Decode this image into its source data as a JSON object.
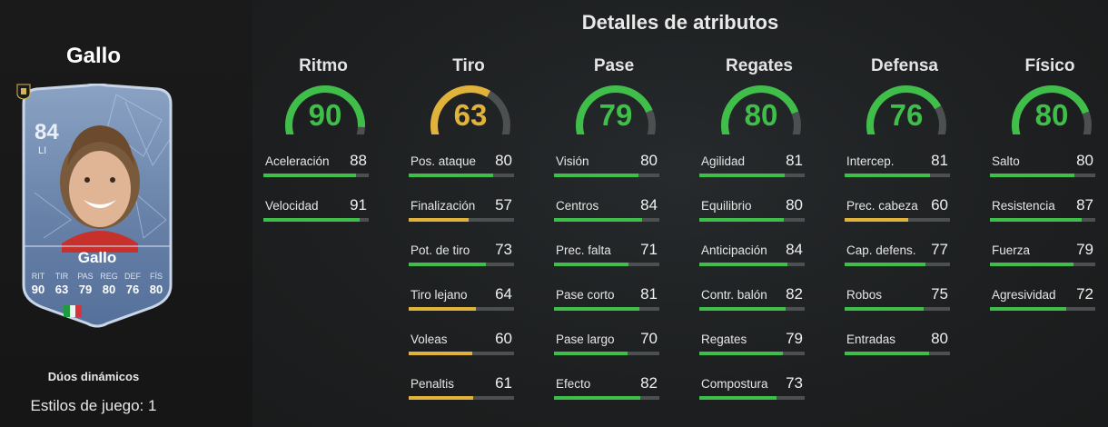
{
  "page": {
    "title": "Detalles de atributos"
  },
  "player": {
    "name": "Gallo",
    "rating": "84",
    "position": "LI",
    "card_name": "Gallo",
    "card_stats": [
      {
        "label": "RIT",
        "value": "90"
      },
      {
        "label": "TIR",
        "value": "63"
      },
      {
        "label": "PAS",
        "value": "79"
      },
      {
        "label": "REG",
        "value": "80"
      },
      {
        "label": "DEF",
        "value": "76"
      },
      {
        "label": "FÍS",
        "value": "80"
      }
    ],
    "subtitle": "Dúos dinámicos",
    "playstyles": "Estilos de juego: 1"
  },
  "colors": {
    "high": "#3fbf4a",
    "mid": "#e2b33a",
    "track": "#4d5050"
  },
  "categories": [
    {
      "label": "Ritmo",
      "value": "90",
      "attributes": [
        {
          "name": "Aceleración",
          "value": "88"
        },
        {
          "name": "Velocidad",
          "value": "91"
        }
      ]
    },
    {
      "label": "Tiro",
      "value": "63",
      "attributes": [
        {
          "name": "Pos. ataque",
          "value": "80"
        },
        {
          "name": "Finalización",
          "value": "57"
        },
        {
          "name": "Pot. de tiro",
          "value": "73"
        },
        {
          "name": "Tiro lejano",
          "value": "64"
        },
        {
          "name": "Voleas",
          "value": "60"
        },
        {
          "name": "Penaltis",
          "value": "61"
        }
      ]
    },
    {
      "label": "Pase",
      "value": "79",
      "attributes": [
        {
          "name": "Visión",
          "value": "80"
        },
        {
          "name": "Centros",
          "value": "84"
        },
        {
          "name": "Prec. falta",
          "value": "71"
        },
        {
          "name": "Pase corto",
          "value": "81"
        },
        {
          "name": "Pase largo",
          "value": "70"
        },
        {
          "name": "Efecto",
          "value": "82"
        }
      ]
    },
    {
      "label": "Regates",
      "value": "80",
      "attributes": [
        {
          "name": "Agilidad",
          "value": "81"
        },
        {
          "name": "Equilibrio",
          "value": "80"
        },
        {
          "name": "Anticipación",
          "value": "84"
        },
        {
          "name": "Contr. balón",
          "value": "82"
        },
        {
          "name": "Regates",
          "value": "79"
        },
        {
          "name": "Compostura",
          "value": "73"
        }
      ]
    },
    {
      "label": "Defensa",
      "value": "76",
      "attributes": [
        {
          "name": "Intercep.",
          "value": "81"
        },
        {
          "name": "Prec. cabeza",
          "value": "60"
        },
        {
          "name": "Cap. defens.",
          "value": "77"
        },
        {
          "name": "Robos",
          "value": "75"
        },
        {
          "name": "Entradas",
          "value": "80"
        }
      ]
    },
    {
      "label": "Físico",
      "value": "80",
      "attributes": [
        {
          "name": "Salto",
          "value": "80"
        },
        {
          "name": "Resistencia",
          "value": "87"
        },
        {
          "name": "Fuerza",
          "value": "79"
        },
        {
          "name": "Agresividad",
          "value": "72"
        }
      ]
    }
  ]
}
